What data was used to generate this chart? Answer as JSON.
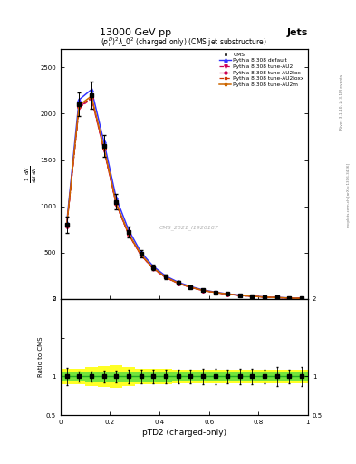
{
  "title_top": "13000 GeV pp",
  "title_right": "Jets",
  "plot_title": "$(p_T^D)^2\\lambda\\_0^2$ (charged only) (CMS jet substructure)",
  "xlabel": "pTD2 (charged-only)",
  "ylabel_ratio": "Ratio to CMS",
  "watermark": "CMS_2021_I1920187",
  "rivet_text": "Rivet 3.1.10, ≥ 3.1M events",
  "mcplots_text": "mcplots.cern.ch [arXiv:1306.3436]",
  "x_data": [
    0.025,
    0.075,
    0.125,
    0.175,
    0.225,
    0.275,
    0.325,
    0.375,
    0.425,
    0.475,
    0.525,
    0.575,
    0.625,
    0.675,
    0.725,
    0.775,
    0.825,
    0.875,
    0.925,
    0.975
  ],
  "cms_y": [
    800,
    2100,
    2200,
    1650,
    1050,
    720,
    490,
    340,
    240,
    175,
    130,
    95,
    72,
    54,
    40,
    30,
    22,
    16,
    11,
    8
  ],
  "cms_yerr": [
    90,
    130,
    150,
    120,
    85,
    60,
    42,
    30,
    22,
    16,
    12,
    9,
    7,
    5,
    4,
    3,
    2,
    2,
    1,
    1
  ],
  "default_y": [
    820,
    2150,
    2260,
    1700,
    1090,
    745,
    505,
    352,
    248,
    182,
    135,
    99,
    75,
    56,
    42,
    31,
    23,
    17,
    12,
    9
  ],
  "au2_y": [
    780,
    2060,
    2160,
    1610,
    1020,
    695,
    470,
    325,
    230,
    168,
    124,
    91,
    69,
    52,
    38,
    28,
    21,
    15,
    10,
    7
  ],
  "au2lox_y": [
    785,
    2070,
    2170,
    1620,
    1025,
    698,
    473,
    328,
    232,
    170,
    125,
    92,
    70,
    52,
    39,
    29,
    21,
    16,
    11,
    7
  ],
  "au2loxx_y": [
    788,
    2075,
    2175,
    1625,
    1028,
    700,
    475,
    330,
    233,
    171,
    126,
    93,
    70,
    53,
    39,
    29,
    21,
    16,
    11,
    7
  ],
  "au2m_y": [
    795,
    2090,
    2190,
    1635,
    1035,
    708,
    480,
    334,
    236,
    173,
    128,
    94,
    71,
    54,
    40,
    30,
    22,
    16,
    11,
    7
  ],
  "cms_ratio_err_green": [
    0.05,
    0.05,
    0.06,
    0.06,
    0.07,
    0.06,
    0.06,
    0.06,
    0.06,
    0.05,
    0.05,
    0.05,
    0.05,
    0.05,
    0.05,
    0.05,
    0.05,
    0.05,
    0.05,
    0.05
  ],
  "cms_ratio_err_yellow": [
    0.1,
    0.1,
    0.12,
    0.14,
    0.15,
    0.12,
    0.1,
    0.1,
    0.1,
    0.09,
    0.09,
    0.09,
    0.09,
    0.09,
    0.09,
    0.09,
    0.09,
    0.09,
    0.09,
    0.09
  ],
  "yticks_main": [
    0,
    500,
    1000,
    1500,
    2000,
    2500
  ],
  "ylim_main": [
    0,
    2700
  ],
  "ylim_ratio": [
    0.5,
    2.0
  ],
  "xlim": [
    0.0,
    1.0
  ],
  "color_default": "#3333ff",
  "color_au2": "#cc0055",
  "color_au2lox": "#cc0055",
  "color_au2loxx": "#cc3300",
  "color_au2m": "#cc6600",
  "color_cms": "#000000",
  "bin_width": 0.05
}
